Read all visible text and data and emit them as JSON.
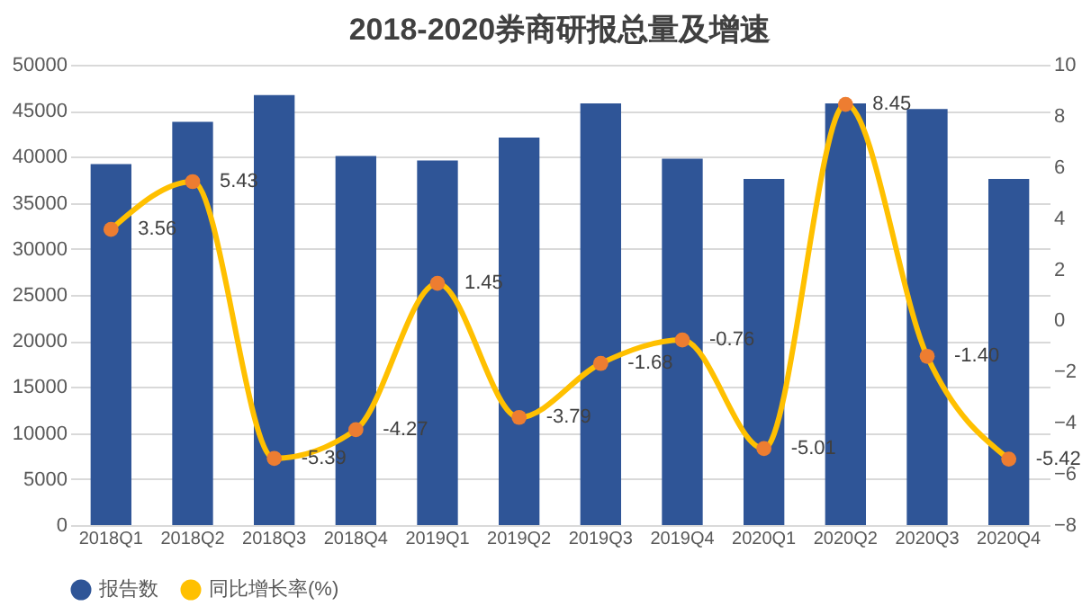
{
  "chart_data": {
    "type": "bar",
    "title": "2018-2020券商研报总量及增速",
    "categories": [
      "2018Q1",
      "2018Q2",
      "2018Q3",
      "2018Q4",
      "2019Q1",
      "2019Q2",
      "2019Q3",
      "2019Q4",
      "2020Q1",
      "2020Q2",
      "2020Q3",
      "2020Q4"
    ],
    "series": [
      {
        "name": "报告数",
        "color": "#2f5597",
        "values": [
          39200,
          43800,
          46700,
          40100,
          39600,
          42100,
          45800,
          39800,
          37600,
          45800,
          45200,
          37600
        ]
      },
      {
        "name": "同比增长率(%)",
        "type": "line",
        "axis": "y2",
        "color": "#ffc000",
        "values": [
          3.56,
          5.43,
          -5.39,
          -4.27,
          1.45,
          -3.79,
          -1.68,
          -0.76,
          -5.01,
          8.45,
          -1.4,
          -5.42
        ],
        "value_labels": [
          "3.56",
          "5.43",
          "-5.39",
          "-4.27",
          "1.45",
          "-3.79",
          "-1.68",
          "-0.76",
          "-5.01",
          "8.45",
          "-1.40",
          "-5.42"
        ]
      }
    ],
    "ylim": [
      0,
      50000
    ],
    "yticks": [
      0,
      5000,
      10000,
      15000,
      20000,
      25000,
      30000,
      35000,
      40000,
      45000,
      50000
    ],
    "y2lim": [
      -8,
      10
    ],
    "y2ticks": [
      -8,
      -6,
      -4,
      -2,
      0,
      2,
      4,
      6,
      8,
      10
    ],
    "grid": "y",
    "legend": "bottom",
    "marker": "circle"
  }
}
